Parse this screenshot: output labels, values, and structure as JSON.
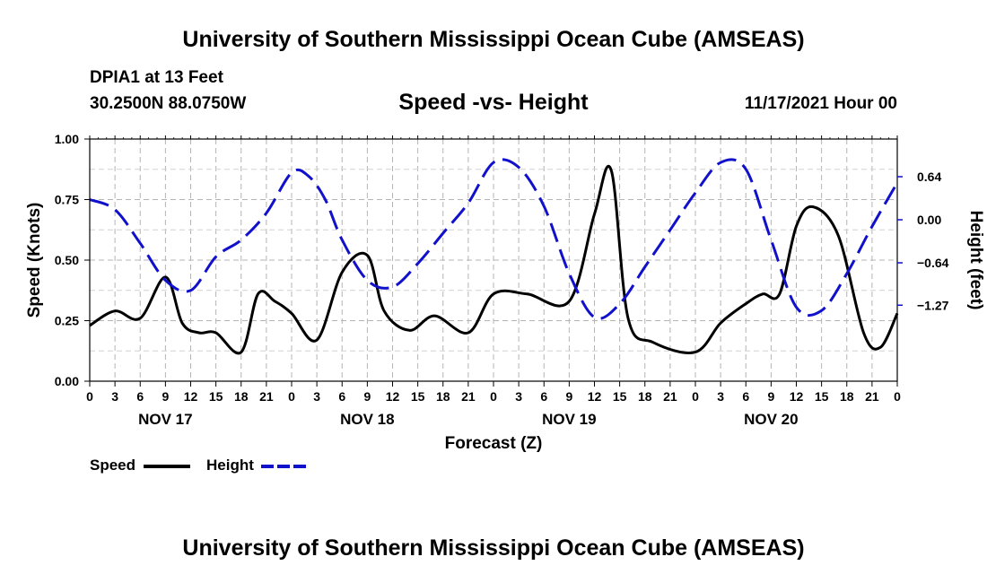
{
  "header": {
    "title": "University of Southern Mississippi Ocean Cube (AMSEAS)",
    "station": "DPIA1 at 13 Feet",
    "coords": "30.2500N  88.0750W",
    "subtitle": "Speed -vs- Height",
    "datetime": "11/17/2021 Hour 00"
  },
  "footer": {
    "title": "University of Southern Mississippi Ocean Cube (AMSEAS)"
  },
  "legend": {
    "speed_label": "Speed",
    "height_label": "Height"
  },
  "chart_data": {
    "type": "line",
    "title": "Speed -vs- Height",
    "xlabel": "Forecast (Z)",
    "ylabel": "Speed (Knots)",
    "y2label": "Height (feet)",
    "xlim": [
      0,
      96
    ],
    "ylim": [
      0,
      1.0
    ],
    "y2lim": [
      -2.4,
      1.2
    ],
    "x_tick_step_hours": 3,
    "x_tick_labels": [
      "0",
      "3",
      "6",
      "9",
      "12",
      "15",
      "18",
      "21",
      "0",
      "3",
      "6",
      "9",
      "12",
      "15",
      "18",
      "21",
      "0",
      "3",
      "6",
      "9",
      "12",
      "15",
      "18",
      "21",
      "0",
      "3",
      "6",
      "9",
      "12",
      "15",
      "18",
      "21",
      "0"
    ],
    "y_ticks": [
      0.0,
      0.25,
      0.5,
      0.75,
      1.0
    ],
    "y_tick_labels": [
      "0.00",
      "0.25",
      "0.50",
      "0.75",
      "1.00"
    ],
    "y2_ticks": [
      0.64,
      0.0,
      -0.64,
      -1.27
    ],
    "y2_tick_labels": [
      "0.64",
      "0.00",
      "−0.64",
      "−1.27"
    ],
    "day_labels": [
      {
        "label": "NOV 17",
        "hour": 9
      },
      {
        "label": "NOV 18",
        "hour": 33
      },
      {
        "label": "NOV 19",
        "hour": 57
      },
      {
        "label": "NOV 20",
        "hour": 81
      }
    ],
    "grid": true,
    "series": [
      {
        "name": "Speed",
        "axis": "left",
        "color": "#000000",
        "dash": "solid",
        "x": [
          0,
          3,
          6,
          9,
          11,
          13,
          15,
          18,
          20,
          22,
          24,
          27,
          30,
          33,
          35,
          38,
          41,
          45,
          48,
          52,
          57,
          60,
          62,
          64,
          67,
          72,
          75,
          78,
          80,
          82,
          84,
          86,
          89,
          92,
          94,
          96
        ],
        "y": [
          0.23,
          0.29,
          0.26,
          0.43,
          0.24,
          0.2,
          0.2,
          0.12,
          0.36,
          0.33,
          0.28,
          0.17,
          0.45,
          0.52,
          0.29,
          0.21,
          0.27,
          0.2,
          0.36,
          0.36,
          0.33,
          0.69,
          0.87,
          0.26,
          0.16,
          0.12,
          0.24,
          0.32,
          0.36,
          0.36,
          0.64,
          0.72,
          0.6,
          0.2,
          0.14,
          0.28
        ]
      },
      {
        "name": "Height",
        "axis": "right",
        "color": "#1111cc",
        "dash": "dashed",
        "x": [
          0,
          3,
          6,
          9,
          12,
          15,
          18,
          21,
          24,
          26,
          28,
          30,
          33,
          36,
          39,
          42,
          45,
          48,
          51,
          54,
          57,
          60,
          63,
          66,
          69,
          72,
          75,
          78,
          81,
          84,
          87,
          90,
          93,
          96
        ],
        "y": [
          0.3,
          0.15,
          -0.35,
          -0.9,
          -1.05,
          -0.55,
          -0.3,
          0.1,
          0.7,
          0.65,
          0.3,
          -0.3,
          -0.9,
          -1.0,
          -0.65,
          -0.2,
          0.25,
          0.85,
          0.78,
          0.2,
          -0.8,
          -1.45,
          -1.25,
          -0.7,
          -0.15,
          0.4,
          0.85,
          0.75,
          -0.3,
          -1.3,
          -1.35,
          -0.8,
          -0.1,
          0.55
        ]
      }
    ]
  }
}
